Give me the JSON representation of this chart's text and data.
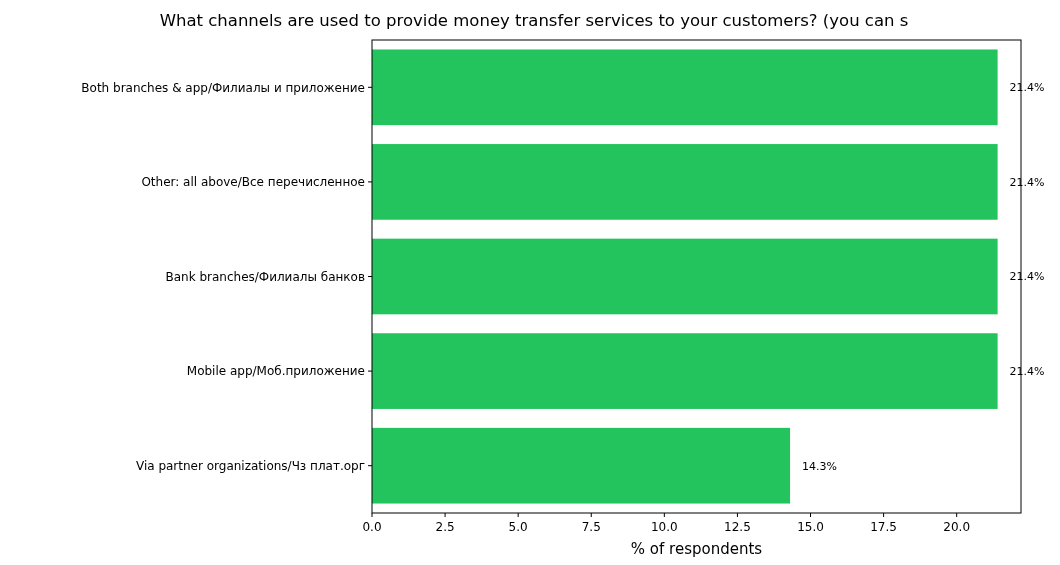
{
  "chart_data": {
    "type": "bar",
    "orientation": "horizontal",
    "title": "What channels are used to provide money transfer services to your customers? (you can s",
    "xlabel": "% of respondents",
    "categories": [
      "Both branches & app/Филиалы и приложение",
      "Other: all above/Все перечисленное",
      "Bank branches/Филиалы банков",
      "Mobile app/Моб.приложение",
      "Via partner organizations/Чз плат.орг"
    ],
    "values": [
      21.4,
      21.4,
      21.4,
      21.4,
      14.3
    ],
    "value_labels": [
      "21.4%",
      "21.4%",
      "21.4%",
      "21.4%",
      "14.3%"
    ],
    "color": "#23c45e",
    "xlim": [
      0,
      22.2
    ],
    "xticks": [
      {
        "value": 0,
        "label": "0.0"
      },
      {
        "value": 2.5,
        "label": "2.5"
      },
      {
        "value": 5,
        "label": "5.0"
      },
      {
        "value": 7.5,
        "label": "7.5"
      },
      {
        "value": 10,
        "label": "10.0"
      },
      {
        "value": 12.5,
        "label": "12.5"
      },
      {
        "value": 15,
        "label": "15.0"
      },
      {
        "value": 17.5,
        "label": "17.5"
      },
      {
        "value": 20,
        "label": "20.0"
      }
    ],
    "grid": false
  }
}
